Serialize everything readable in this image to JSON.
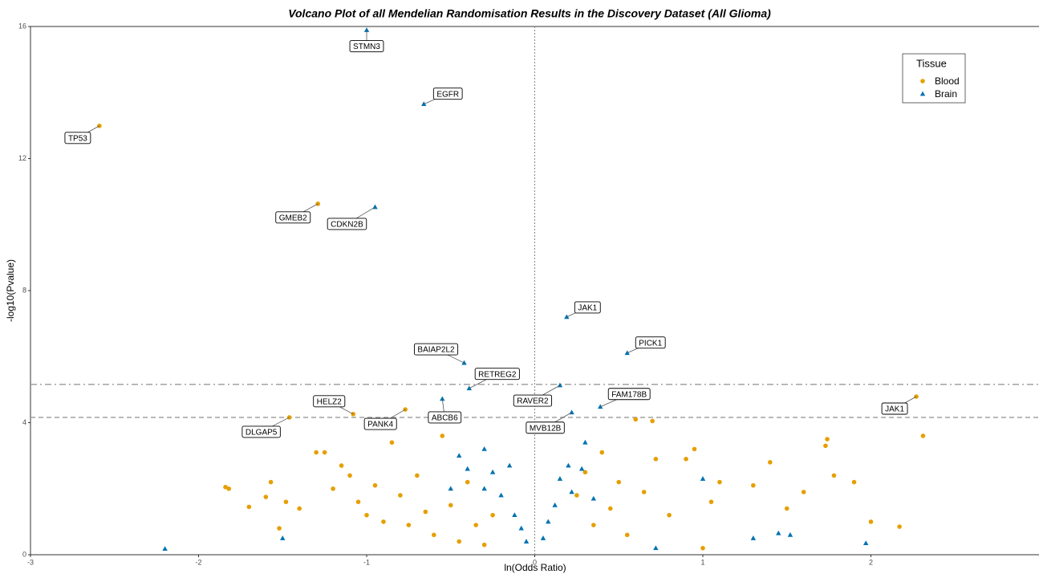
{
  "chart_data": {
    "type": "scatter",
    "title": "Volcano Plot of all Mendelian Randomisation Results in the Discovery Dataset (All Glioma)",
    "x_label": "ln(Odds Ratio)",
    "y_label": "-log10(Pvalue)",
    "xlim": [
      -3,
      3
    ],
    "ylim": [
      0,
      16
    ],
    "xticks": [
      -3,
      -2,
      -1,
      0,
      1,
      2
    ],
    "yticks": [
      0,
      4,
      8,
      12,
      16
    ],
    "legend_title": "Tissue",
    "legend": "top-right",
    "hlines": [
      {
        "value": 5.16,
        "style": "dashdot"
      },
      {
        "value": 4.16,
        "style": "dashed"
      }
    ],
    "vline": 0,
    "series": [
      {
        "name": "Blood",
        "color": "#E69F00",
        "marker": "circle",
        "x": [
          -2.59,
          -1.29,
          -1.08,
          -0.77,
          -1.46,
          2.27,
          -1.84,
          -1.82,
          -1.7,
          -1.6,
          -1.57,
          -1.52,
          -1.48,
          -1.4,
          -1.3,
          -1.25,
          -1.2,
          -1.15,
          -1.1,
          -1.05,
          -1.0,
          -0.95,
          -0.9,
          -0.85,
          -0.8,
          -0.75,
          -0.7,
          -0.65,
          -0.6,
          -0.55,
          -0.5,
          -0.45,
          -0.4,
          -0.35,
          -0.3,
          -0.25,
          0.25,
          0.3,
          0.35,
          0.4,
          0.45,
          0.5,
          0.55,
          0.6,
          0.65,
          0.7,
          0.72,
          0.8,
          0.9,
          0.95,
          1.0,
          1.05,
          1.1,
          1.3,
          1.4,
          1.5,
          1.6,
          1.73,
          1.74,
          1.78,
          1.9,
          2.17,
          2.31,
          2.0
        ],
        "values": [
          12.99,
          10.63,
          4.26,
          4.4,
          4.16,
          4.79,
          2.05,
          2.0,
          1.45,
          1.75,
          2.2,
          0.8,
          1.6,
          1.4,
          3.1,
          3.1,
          2.0,
          2.7,
          2.4,
          1.6,
          1.2,
          2.1,
          1.0,
          3.4,
          1.8,
          0.9,
          2.4,
          1.3,
          0.6,
          3.6,
          1.5,
          0.4,
          2.2,
          0.9,
          0.3,
          1.2,
          1.8,
          2.5,
          0.9,
          3.1,
          1.4,
          2.2,
          0.6,
          4.1,
          1.9,
          4.05,
          2.9,
          1.2,
          2.9,
          3.2,
          0.2,
          1.6,
          2.2,
          2.1,
          2.8,
          1.4,
          1.9,
          3.3,
          3.5,
          2.4,
          2.2,
          0.85,
          3.6,
          1.0
        ],
        "labels": [
          "TP53",
          "GMEB2",
          "HELZ2",
          "PANK4",
          "DLGAP5",
          "JAK1",
          null,
          null,
          null,
          null,
          null,
          null,
          null,
          null,
          null,
          null,
          null,
          null,
          null,
          null,
          null,
          null,
          null,
          null,
          null,
          null,
          null,
          null,
          null,
          null,
          null,
          null,
          null,
          null,
          null,
          null,
          null,
          null,
          null,
          null,
          null,
          null,
          null,
          null,
          null,
          null,
          null,
          null,
          null,
          null,
          null,
          null,
          null,
          null,
          null,
          null,
          null,
          null,
          null,
          null,
          null,
          null,
          null,
          null
        ]
      },
      {
        "name": "Brain",
        "color": "#0072B2",
        "marker": "triangle",
        "x": [
          -1.0,
          -0.66,
          -0.95,
          0.19,
          0.55,
          -0.42,
          -0.39,
          0.15,
          0.39,
          -0.55,
          0.22,
          -2.2,
          -1.5,
          -0.45,
          -0.4,
          -0.3,
          -0.3,
          -0.25,
          -0.2,
          -0.15,
          -0.12,
          -0.08,
          -0.05,
          0.05,
          0.08,
          0.12,
          0.15,
          0.2,
          0.22,
          0.28,
          0.3,
          0.35,
          0.72,
          1.0,
          1.3,
          1.45,
          1.52,
          1.97,
          -0.5
        ],
        "values": [
          15.89,
          13.65,
          10.53,
          7.2,
          6.11,
          5.81,
          5.04,
          5.13,
          4.48,
          4.72,
          4.31,
          0.18,
          0.5,
          3.0,
          2.6,
          3.2,
          2.0,
          2.5,
          1.8,
          2.7,
          1.2,
          0.8,
          0.4,
          0.5,
          1.0,
          1.5,
          2.3,
          2.7,
          1.9,
          2.6,
          3.4,
          1.7,
          0.2,
          2.3,
          0.5,
          0.65,
          0.6,
          0.35,
          2.0
        ],
        "labels": [
          "STMN3",
          "EGFR",
          "CDKN2B",
          "JAK1",
          "PICK1",
          "BAIAP2L2",
          "RETREG2",
          "RAVER2",
          "FAM178B",
          "ABCB6",
          "MVB12B",
          null,
          null,
          null,
          null,
          null,
          null,
          null,
          null,
          null,
          null,
          null,
          null,
          null,
          null,
          null,
          null,
          null,
          null,
          null,
          null,
          null,
          null,
          null,
          null,
          null,
          null,
          null,
          null
        ]
      }
    ]
  }
}
